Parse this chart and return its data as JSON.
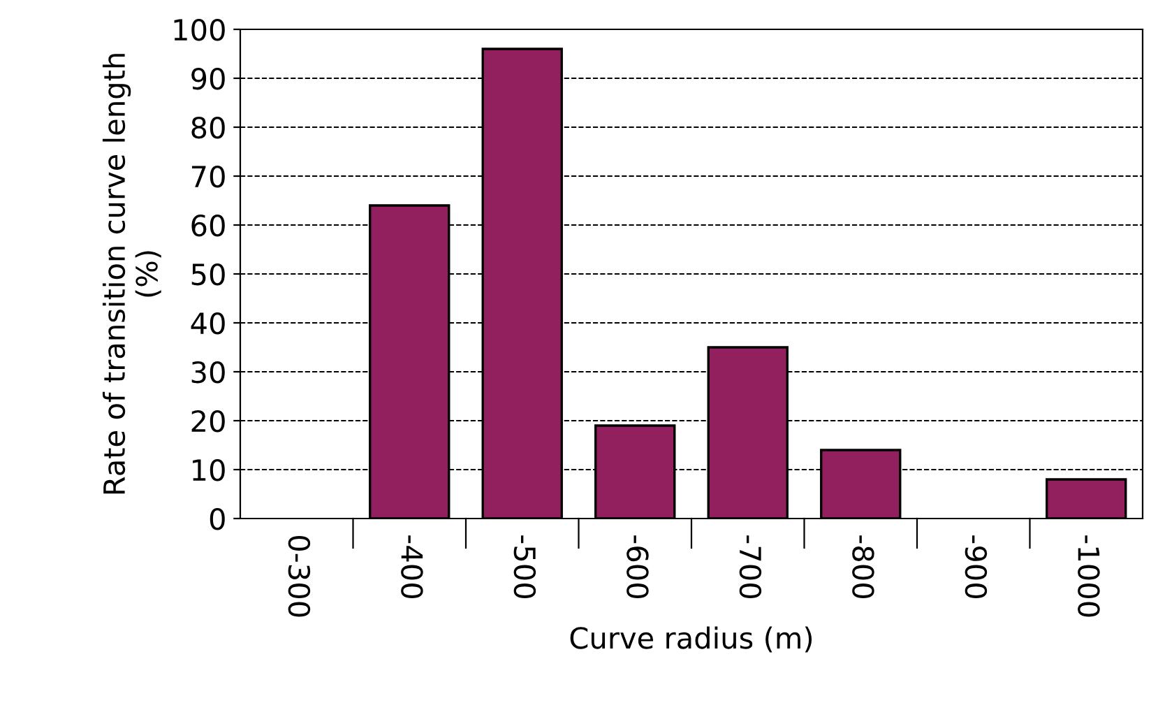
{
  "chart_data": {
    "type": "bar",
    "xlabel": "Curve radius (m)",
    "ylabel": "Rate of transition curve length\n(%)",
    "categories": [
      "0-300",
      "-400",
      "-500",
      "-600",
      "-700",
      "-800",
      "-900",
      "-1000"
    ],
    "values": [
      null,
      64,
      96,
      19,
      35,
      14,
      null,
      8
    ],
    "color": "#921f5e",
    "ylim": [
      0,
      100
    ],
    "yticks": [
      0,
      10,
      20,
      30,
      40,
      50,
      60,
      70,
      80,
      90,
      100
    ],
    "grid": "y"
  }
}
